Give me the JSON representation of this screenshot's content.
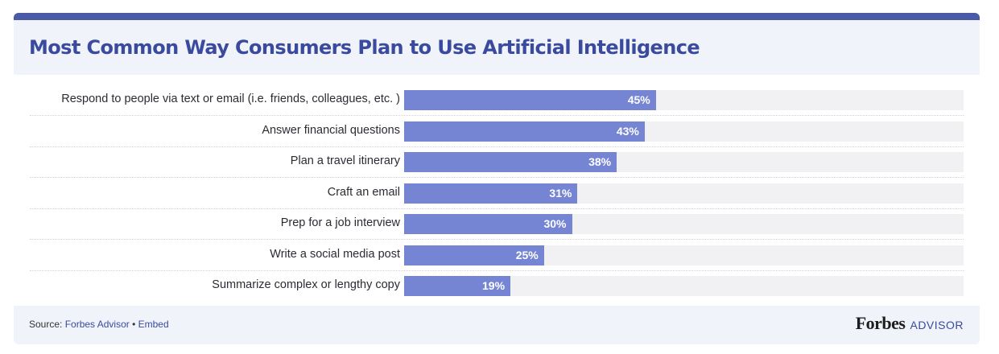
{
  "title": "Most Common Way Consumers Plan to Use Artificial Intelligence",
  "chart_data": {
    "type": "bar",
    "orientation": "horizontal",
    "title": "Most Common Way Consumers Plan to Use Artificial Intelligence",
    "categories": [
      "Respond to people via text or email (i.e. friends, colleagues, etc. )",
      "Answer financial questions",
      "Plan a travel itinerary",
      "Craft an email",
      "Prep for a job interview",
      "Write a social media post",
      "Summarize complex or lengthy copy"
    ],
    "values": [
      45,
      43,
      38,
      31,
      30,
      25,
      19
    ],
    "value_labels": [
      "45%",
      "43%",
      "38%",
      "31%",
      "30%",
      "25%",
      "19%"
    ],
    "xlim": [
      0,
      100
    ],
    "unit": "%",
    "bar_color": "#7585d4",
    "track_color": "#f1f1f3",
    "grid": false
  },
  "footer": {
    "source_prefix": "Source: ",
    "source_link": "Forbes Advisor",
    "separator": " • ",
    "embed_link": "Embed"
  },
  "brand": {
    "main": "Forbes",
    "sub": "ADVISOR"
  },
  "colors": {
    "title": "#3a4a9e",
    "header_bg": "#f0f3fa",
    "accent_bar": "#4a5aa6"
  }
}
